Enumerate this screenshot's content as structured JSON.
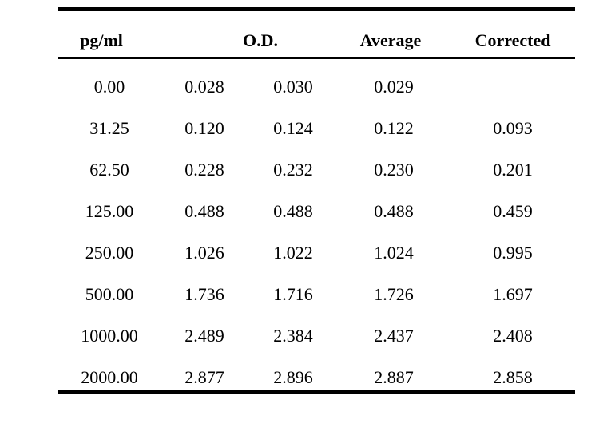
{
  "table": {
    "headers": {
      "concentration": "pg/ml",
      "od": "O.D.",
      "average": "Average",
      "corrected": "Corrected"
    },
    "rows": [
      {
        "conc": "0.00",
        "od1": "0.028",
        "od2": "0.030",
        "avg": "0.029",
        "corr": ""
      },
      {
        "conc": "31.25",
        "od1": "0.120",
        "od2": "0.124",
        "avg": "0.122",
        "corr": "0.093"
      },
      {
        "conc": "62.50",
        "od1": "0.228",
        "od2": "0.232",
        "avg": "0.230",
        "corr": "0.201"
      },
      {
        "conc": "125.00",
        "od1": "0.488",
        "od2": "0.488",
        "avg": "0.488",
        "corr": "0.459"
      },
      {
        "conc": "250.00",
        "od1": "1.026",
        "od2": "1.022",
        "avg": "1.024",
        "corr": "0.995"
      },
      {
        "conc": "500.00",
        "od1": "1.736",
        "od2": "1.716",
        "avg": "1.726",
        "corr": "1.697"
      },
      {
        "conc": "1000.00",
        "od1": "2.489",
        "od2": "2.384",
        "avg": "2.437",
        "corr": "2.408"
      },
      {
        "conc": "2000.00",
        "od1": "2.877",
        "od2": "2.896",
        "avg": "2.887",
        "corr": "2.858"
      }
    ]
  }
}
